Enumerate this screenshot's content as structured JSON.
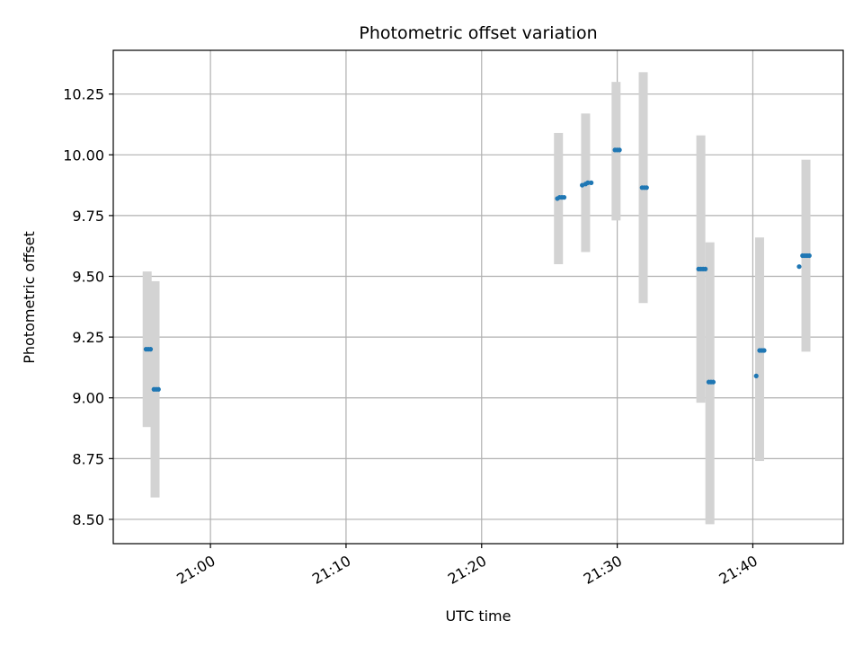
{
  "chart_data": {
    "type": "scatter",
    "title": "Photometric offset variation",
    "xlabel": "UTC time",
    "ylabel": "Photometric offset",
    "grid": true,
    "xlim": [
      "20:52:50",
      "21:46:40"
    ],
    "ylim": [
      8.4,
      10.43
    ],
    "x_ticks": [
      "21:00",
      "21:10",
      "21:20",
      "21:30",
      "21:40"
    ],
    "y_ticks": [
      "8.50",
      "8.75",
      "9.00",
      "9.25",
      "9.50",
      "9.75",
      "10.00",
      "10.25"
    ],
    "colors": {
      "points": "#1f77b4",
      "error_bands": "#d3d3d3",
      "grid": "#b0b0b0"
    },
    "error_bands": [
      {
        "x": "20:55:20",
        "low": 8.88,
        "high": 9.52
      },
      {
        "x": "20:55:55",
        "low": 8.59,
        "high": 9.48
      },
      {
        "x": "21:25:40",
        "low": 9.55,
        "high": 10.09
      },
      {
        "x": "21:27:40",
        "low": 9.6,
        "high": 10.17
      },
      {
        "x": "21:29:55",
        "low": 9.73,
        "high": 10.3
      },
      {
        "x": "21:31:55",
        "low": 9.39,
        "high": 10.34
      },
      {
        "x": "21:36:10",
        "low": 8.98,
        "high": 10.08
      },
      {
        "x": "21:36:50",
        "low": 8.48,
        "high": 9.64
      },
      {
        "x": "21:40:30",
        "low": 8.74,
        "high": 9.66
      },
      {
        "x": "21:43:55",
        "low": 9.19,
        "high": 9.98
      }
    ],
    "series": [
      {
        "values": [
          {
            "x": "20:55:15",
            "y": 9.2
          },
          {
            "x": "20:55:25",
            "y": 9.2
          },
          {
            "x": "20:55:35",
            "y": 9.2
          },
          {
            "x": "20:55:50",
            "y": 9.035
          },
          {
            "x": "20:56:00",
            "y": 9.035
          },
          {
            "x": "20:56:10",
            "y": 9.035
          },
          {
            "x": "21:25:35",
            "y": 9.82
          },
          {
            "x": "21:25:45",
            "y": 9.825
          },
          {
            "x": "21:25:55",
            "y": 9.825
          },
          {
            "x": "21:26:05",
            "y": 9.825
          },
          {
            "x": "21:27:25",
            "y": 9.875
          },
          {
            "x": "21:27:40",
            "y": 9.88
          },
          {
            "x": "21:27:50",
            "y": 9.885
          },
          {
            "x": "21:28:05",
            "y": 9.885
          },
          {
            "x": "21:29:50",
            "y": 10.02
          },
          {
            "x": "21:30:00",
            "y": 10.02
          },
          {
            "x": "21:30:10",
            "y": 10.02
          },
          {
            "x": "21:31:50",
            "y": 9.865
          },
          {
            "x": "21:32:00",
            "y": 9.865
          },
          {
            "x": "21:32:10",
            "y": 9.865
          },
          {
            "x": "21:36:00",
            "y": 9.53
          },
          {
            "x": "21:36:10",
            "y": 9.53
          },
          {
            "x": "21:36:20",
            "y": 9.53
          },
          {
            "x": "21:36:30",
            "y": 9.53
          },
          {
            "x": "21:36:45",
            "y": 9.065
          },
          {
            "x": "21:36:55",
            "y": 9.065
          },
          {
            "x": "21:37:05",
            "y": 9.065
          },
          {
            "x": "21:40:15",
            "y": 9.09
          },
          {
            "x": "21:40:30",
            "y": 9.195
          },
          {
            "x": "21:40:40",
            "y": 9.195
          },
          {
            "x": "21:40:50",
            "y": 9.195
          },
          {
            "x": "21:43:25",
            "y": 9.54
          },
          {
            "x": "21:43:40",
            "y": 9.585
          },
          {
            "x": "21:43:50",
            "y": 9.585
          },
          {
            "x": "21:44:00",
            "y": 9.585
          },
          {
            "x": "21:44:10",
            "y": 9.585
          }
        ]
      }
    ]
  }
}
